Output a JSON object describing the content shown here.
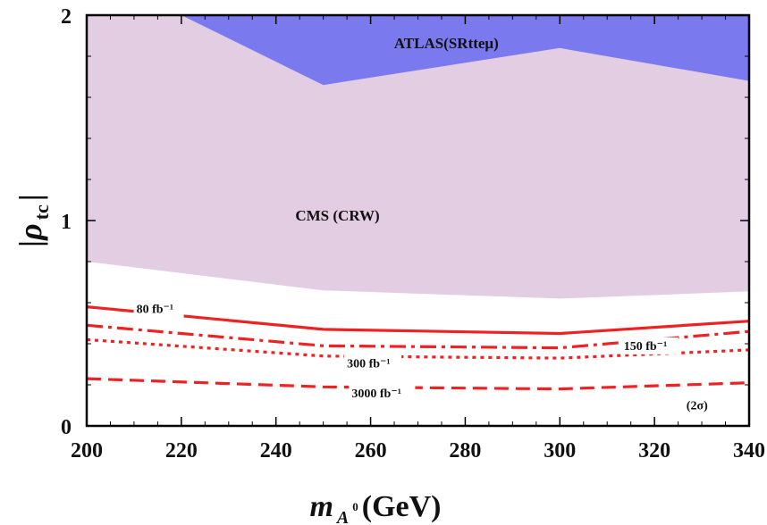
{
  "chart_data": {
    "type": "area",
    "xlabel": {
      "symbol": "m",
      "subscript": "A",
      "superscript": "0",
      "unit": " (GeV)"
    },
    "ylabel": {
      "symbol": "|ρ",
      "subscript": "tc",
      "close": "|"
    },
    "xlim": [
      200,
      340
    ],
    "ylim": [
      0,
      2
    ],
    "xticks": [
      200,
      220,
      240,
      260,
      280,
      300,
      320,
      340
    ],
    "yticks": [
      0,
      1,
      2
    ],
    "grid": false,
    "regions": [
      {
        "name": "CMS (CRW)",
        "color": "#e3cde3",
        "lower": {
          "x": [
            200,
            250,
            300,
            340
          ],
          "y": [
            0.8,
            0.66,
            0.62,
            0.655
          ]
        }
      },
      {
        "name": "ATLAS(SRtteμ)",
        "color": "#7b79ee",
        "lower": {
          "x": [
            220,
            250,
            300,
            340
          ],
          "y": [
            2.0,
            1.66,
            1.84,
            1.68
          ]
        }
      }
    ],
    "series": [
      {
        "name": "80 fb⁻¹",
        "style": "solid",
        "color": "#ee2222",
        "x": [
          200,
          250,
          300,
          340
        ],
        "y": [
          0.58,
          0.47,
          0.45,
          0.51
        ]
      },
      {
        "name": "150 fb⁻¹",
        "style": "dashdot",
        "color": "#ee2222",
        "x": [
          200,
          250,
          300,
          340
        ],
        "y": [
          0.49,
          0.39,
          0.38,
          0.46
        ]
      },
      {
        "name": "300 fb⁻¹",
        "style": "dotted",
        "color": "#ee2222",
        "x": [
          200,
          250,
          300,
          340
        ],
        "y": [
          0.42,
          0.34,
          0.33,
          0.37
        ]
      },
      {
        "name": "3000 fb⁻¹",
        "style": "dashed",
        "color": "#ee2222",
        "x": [
          200,
          250,
          300,
          340
        ],
        "y": [
          0.23,
          0.19,
          0.18,
          0.21
        ]
      }
    ],
    "annotations": [
      "(2σ)"
    ]
  }
}
